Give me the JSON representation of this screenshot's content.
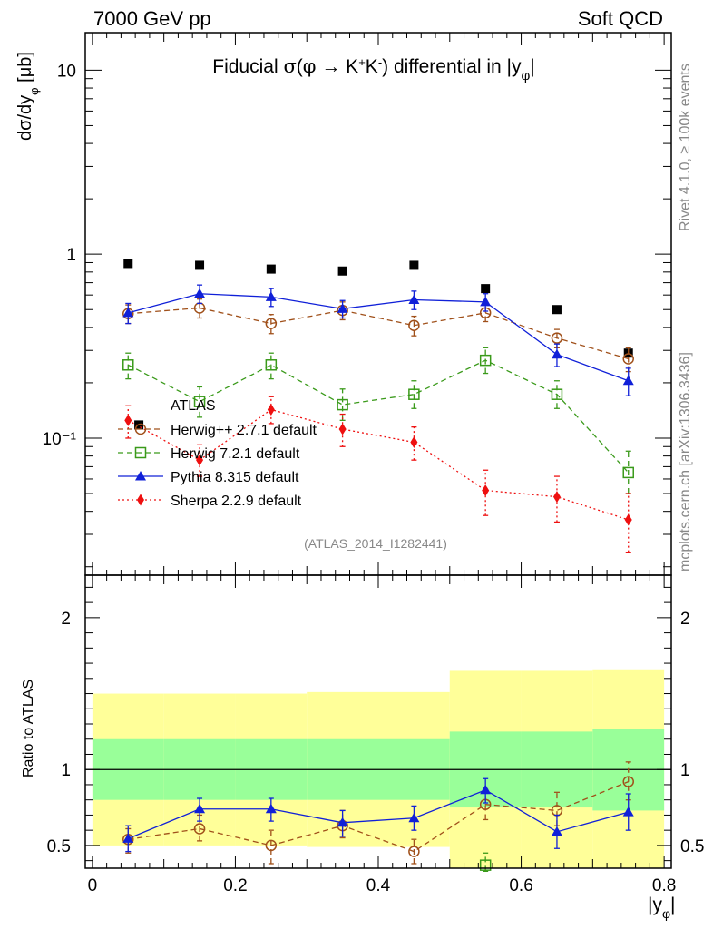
{
  "header": {
    "left": "7000 GeV pp",
    "right": "Soft QCD"
  },
  "side_text": {
    "rivet": "Rivet 4.1.0, ≥ 100k events",
    "mcplots": "mcplots.cern.ch [arXiv:1306.3436]"
  },
  "chart_data": [
    {
      "type": "scatter",
      "panel": "main",
      "title": "Fiducial σ(φ → K⁺K⁻) differential in |yφ|",
      "ylabel": "dσ/dyφ [μb]",
      "yscale": "log",
      "ylim": [
        0.018,
        16
      ],
      "xlim": [
        -0.01,
        0.81
      ],
      "ytick_labels": [
        "10",
        "1",
        "10⁻¹"
      ],
      "ytick_values": [
        10,
        1,
        0.1
      ],
      "analysis_id": "(ATLAS_2014_I1282441)",
      "x": [
        0.05,
        0.15,
        0.25,
        0.35,
        0.45,
        0.55,
        0.65,
        0.75
      ],
      "series": [
        {
          "name": "ATLAS",
          "color": "#000000",
          "marker": "square",
          "x": [
            0.05,
            0.15,
            0.25,
            0.35,
            0.45,
            0.55,
            0.65,
            0.75
          ],
          "values": [
            0.89,
            0.87,
            0.83,
            0.81,
            0.87,
            0.65,
            0.5,
            0.29
          ],
          "legend_marker_value": 0.118,
          "legend_marker_x": 0.065
        },
        {
          "name": "Herwig++ 2.7.1 default",
          "color": "#a0501a",
          "marker": "circle-open",
          "line": "dashed",
          "values": [
            0.475,
            0.51,
            0.42,
            0.495,
            0.41,
            0.48,
            0.35,
            0.27
          ],
          "err_lo": [
            0.42,
            0.45,
            0.37,
            0.44,
            0.36,
            0.43,
            0.31,
            0.23
          ],
          "err_hi": [
            0.53,
            0.57,
            0.47,
            0.55,
            0.46,
            0.53,
            0.39,
            0.31
          ]
        },
        {
          "name": "Herwig 7.2.1 default",
          "color": "#3a9a1a",
          "marker": "square-open",
          "line": "dashed",
          "values": [
            0.25,
            0.158,
            0.25,
            0.152,
            0.173,
            0.265,
            0.173,
            0.065
          ],
          "err_lo": [
            0.21,
            0.13,
            0.21,
            0.125,
            0.145,
            0.225,
            0.145,
            0.05
          ],
          "err_hi": [
            0.29,
            0.19,
            0.29,
            0.185,
            0.205,
            0.31,
            0.205,
            0.085
          ]
        },
        {
          "name": "Pythia 8.315 default",
          "color": "#1020d8",
          "marker": "triangle",
          "line": "solid",
          "values": [
            0.48,
            0.61,
            0.585,
            0.505,
            0.565,
            0.55,
            0.285,
            0.205
          ],
          "err_lo": [
            0.42,
            0.54,
            0.52,
            0.45,
            0.5,
            0.49,
            0.245,
            0.17
          ],
          "err_hi": [
            0.54,
            0.68,
            0.65,
            0.56,
            0.63,
            0.61,
            0.325,
            0.24
          ]
        },
        {
          "name": "Sherpa 2.2.9 default",
          "color": "#ee1010",
          "marker": "diamond",
          "line": "dotted",
          "values": [
            0.125,
            0.076,
            0.143,
            0.112,
            0.095,
            0.052,
            0.048,
            0.036
          ],
          "err_lo": [
            0.1,
            0.062,
            0.12,
            0.09,
            0.076,
            0.038,
            0.035,
            0.024
          ],
          "err_hi": [
            0.15,
            0.092,
            0.168,
            0.135,
            0.115,
            0.067,
            0.062,
            0.05
          ]
        }
      ]
    },
    {
      "type": "scatter",
      "panel": "ratio",
      "ylabel": "Ratio to ATLAS",
      "xlabel": "|yφ|",
      "ylim": [
        0.35,
        2.28
      ],
      "xlim": [
        -0.01,
        0.81
      ],
      "xtick_labels": [
        "0",
        "0.2",
        "0.4",
        "0.6",
        "0.8"
      ],
      "xtick_values": [
        0,
        0.2,
        0.4,
        0.6,
        0.8
      ],
      "ytick_labels": [
        "0.5",
        "1",
        "2"
      ],
      "ytick_values": [
        0.5,
        1,
        2
      ],
      "bands": {
        "bin_edges": [
          0,
          0.1,
          0.2,
          0.3,
          0.4,
          0.5,
          0.6,
          0.7,
          0.8
        ],
        "green_lo": [
          0.8,
          0.8,
          0.8,
          0.8,
          0.8,
          0.75,
          0.75,
          0.73
        ],
        "green_hi": [
          1.2,
          1.2,
          1.2,
          1.2,
          1.2,
          1.25,
          1.25,
          1.27
        ],
        "yellow_lo": [
          0.5,
          0.5,
          0.5,
          0.49,
          0.49,
          0.34,
          0.34,
          0.34
        ],
        "yellow_hi": [
          1.5,
          1.5,
          1.5,
          1.51,
          1.51,
          1.65,
          1.65,
          1.66
        ],
        "green_color": "#99ff99",
        "yellow_color": "#ffff99"
      },
      "x": [
        0.05,
        0.15,
        0.25,
        0.35,
        0.45,
        0.55,
        0.65,
        0.75
      ],
      "series": [
        {
          "name": "Herwig++ 2.7.1 default",
          "color": "#a0501a",
          "marker": "circle-open",
          "line": "dashed",
          "values": [
            0.54,
            0.61,
            0.5,
            0.63,
            0.46,
            0.77,
            0.73,
            0.92
          ],
          "err_lo": [
            0.45,
            0.53,
            0.38,
            0.55,
            0.38,
            0.67,
            0.63,
            0.8
          ],
          "err_hi": [
            0.61,
            0.7,
            0.6,
            0.73,
            0.54,
            0.87,
            0.85,
            1.05
          ]
        },
        {
          "name": "Herwig 7.2.1 default",
          "color": "#3a9a1a",
          "marker": "square-open",
          "line": "dashed",
          "points_x": [
            0.55
          ],
          "values": [
            0.37
          ],
          "err_lo": [
            0.33
          ],
          "err_hi": [
            0.45
          ]
        },
        {
          "name": "Pythia 8.315 default",
          "color": "#1020d8",
          "marker": "triangle",
          "line": "solid",
          "values": [
            0.545,
            0.74,
            0.74,
            0.65,
            0.68,
            0.865,
            0.59,
            0.72
          ],
          "err_lo": [
            0.46,
            0.66,
            0.66,
            0.56,
            0.6,
            0.78,
            0.48,
            0.6
          ],
          "err_hi": [
            0.63,
            0.81,
            0.81,
            0.73,
            0.76,
            0.94,
            0.7,
            0.84
          ]
        }
      ]
    }
  ]
}
